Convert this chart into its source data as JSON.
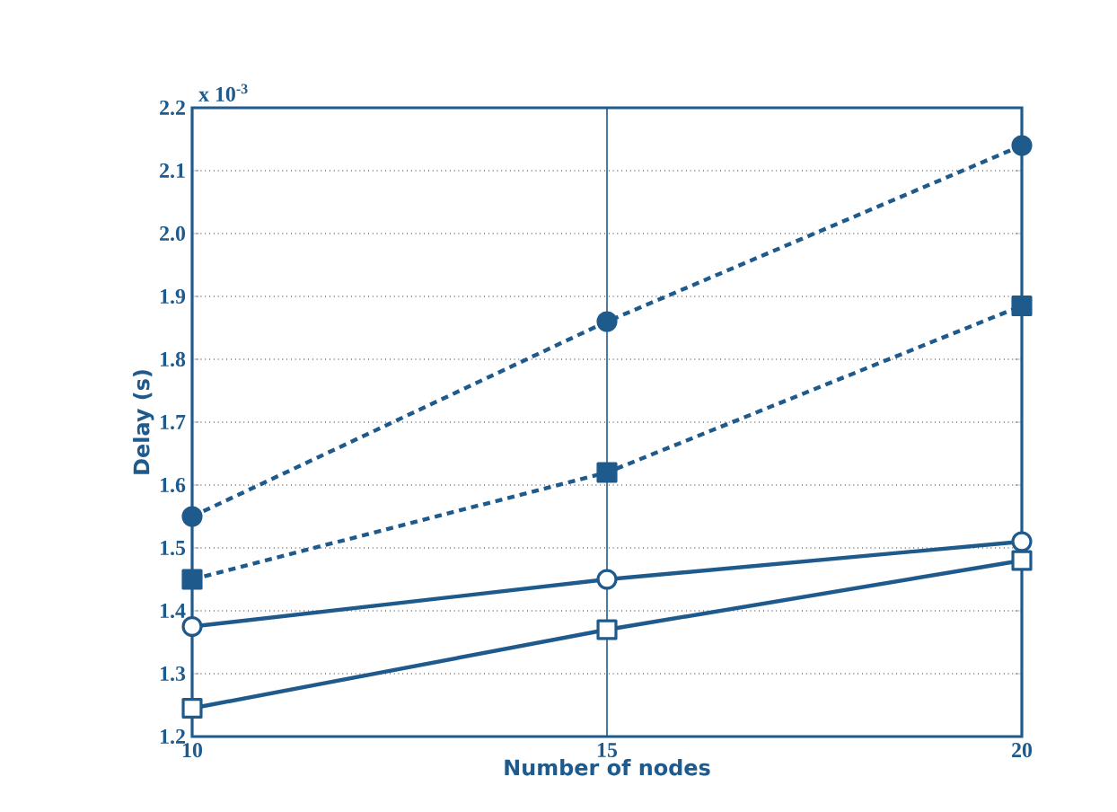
{
  "chart_data": {
    "type": "line",
    "xlabel": "Number of nodes",
    "ylabel": "Delay (s)",
    "annotations": [
      "x 10$^{-3}$"
    ],
    "x": [
      10,
      15,
      20
    ],
    "xlim": [
      10,
      20
    ],
    "xticks": [
      10,
      15,
      20
    ],
    "ylim": [
      1.2,
      2.2
    ],
    "yticks": [
      1.2,
      1.3,
      1.4,
      1.5,
      1.6,
      1.7,
      1.8,
      1.9,
      {
        "value": 2.0,
        "label": "2.0"
      },
      2.1,
      2.2
    ],
    "grid": "y",
    "ref_lines": [
      {
        "axis": "x",
        "value": 15,
        "color": "#1f5a8c",
        "line_style": "solid"
      }
    ],
    "series": [
      {
        "color": "#1f5a8c",
        "values": [
          1.55,
          1.86,
          2.14
        ],
        "marker": "circle",
        "line_style": "dashed"
      },
      {
        "color": "#1f5a8c",
        "values": [
          1.45,
          1.62,
          1.885
        ],
        "marker": "square",
        "line_style": "dashed"
      },
      {
        "color": "#1f5a8c",
        "values": [
          1.375,
          1.45,
          1.51
        ],
        "marker": "circle",
        "line_style": "solid"
      },
      {
        "color": "#1f5a8c",
        "values": [
          1.245,
          1.37,
          1.48
        ],
        "marker": "square",
        "line_style": "solid"
      }
    ]
  }
}
